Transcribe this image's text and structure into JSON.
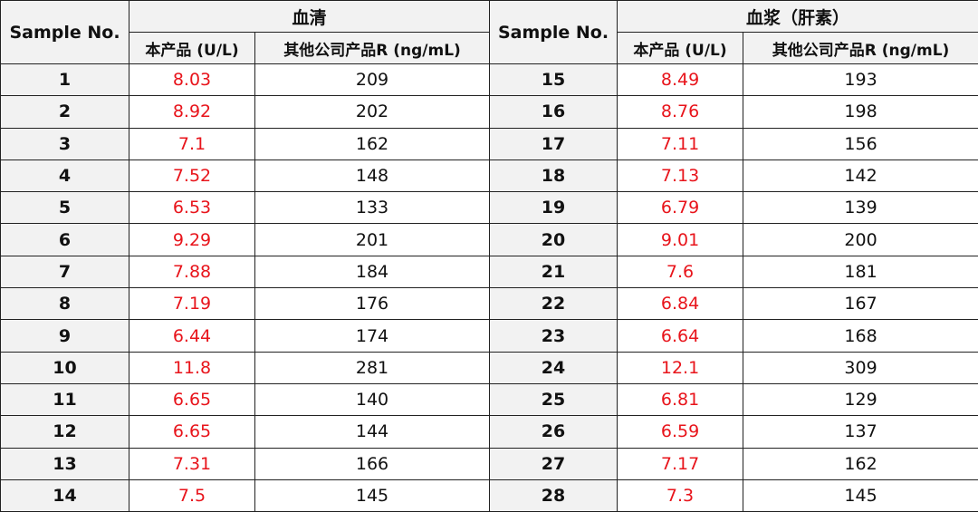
{
  "header": {
    "sample_no": "Sample No.",
    "serum": "血清",
    "plasma": "血浆（肝素）",
    "col_product": "本产品 (U/L)",
    "col_other": "其他公司产品R (ng/mL)"
  },
  "colors": {
    "product_value": "#e8141b",
    "header_bg": "#f2f2f2"
  },
  "serum_rows": [
    {
      "no": "1",
      "product": "8.03",
      "other": "209"
    },
    {
      "no": "2",
      "product": "8.92",
      "other": "202"
    },
    {
      "no": "3",
      "product": "7.1",
      "other": "162"
    },
    {
      "no": "4",
      "product": "7.52",
      "other": "148"
    },
    {
      "no": "5",
      "product": "6.53",
      "other": "133"
    },
    {
      "no": "6",
      "product": "9.29",
      "other": "201"
    },
    {
      "no": "7",
      "product": "7.88",
      "other": "184"
    },
    {
      "no": "8",
      "product": "7.19",
      "other": "176"
    },
    {
      "no": "9",
      "product": "6.44",
      "other": "174"
    },
    {
      "no": "10",
      "product": "11.8",
      "other": "281"
    },
    {
      "no": "11",
      "product": "6.65",
      "other": "140"
    },
    {
      "no": "12",
      "product": "6.65",
      "other": "144"
    },
    {
      "no": "13",
      "product": "7.31",
      "other": "166"
    },
    {
      "no": "14",
      "product": "7.5",
      "other": "145"
    }
  ],
  "plasma_rows": [
    {
      "no": "15",
      "product": "8.49",
      "other": "193"
    },
    {
      "no": "16",
      "product": "8.76",
      "other": "198"
    },
    {
      "no": "17",
      "product": "7.11",
      "other": "156"
    },
    {
      "no": "18",
      "product": "7.13",
      "other": "142"
    },
    {
      "no": "19",
      "product": "6.79",
      "other": "139"
    },
    {
      "no": "20",
      "product": "9.01",
      "other": "200"
    },
    {
      "no": "21",
      "product": "7.6",
      "other": "181"
    },
    {
      "no": "22",
      "product": "6.84",
      "other": "167"
    },
    {
      "no": "23",
      "product": "6.64",
      "other": "168"
    },
    {
      "no": "24",
      "product": "12.1",
      "other": "309"
    },
    {
      "no": "25",
      "product": "6.81",
      "other": "129"
    },
    {
      "no": "26",
      "product": "6.59",
      "other": "137"
    },
    {
      "no": "27",
      "product": "7.17",
      "other": "162"
    },
    {
      "no": "28",
      "product": "7.3",
      "other": "145"
    }
  ]
}
